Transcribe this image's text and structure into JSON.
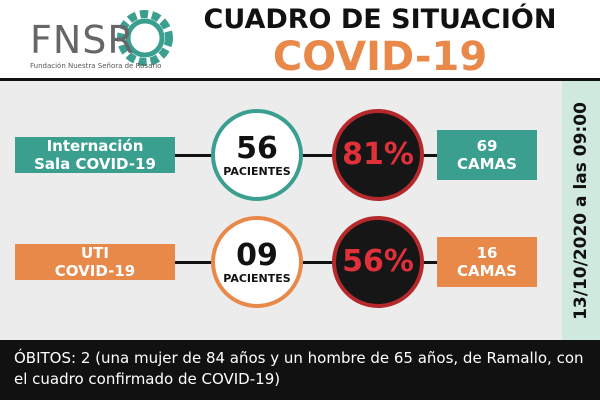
{
  "header": {
    "logo": "FNSR",
    "logo_subtitle": "Fundación Nuestra Señora de Rosario",
    "title": "CUADRO DE SITUACIÓN",
    "subtitle": "COVID-19"
  },
  "rows": [
    {
      "label_lines": [
        "Internación",
        "Sala COVID-19"
      ],
      "patients": "56",
      "patients_label": "PACIENTES",
      "occupancy": "81%",
      "beds_lines": [
        "69",
        "CAMAS"
      ]
    },
    {
      "label_lines": [
        "UTI",
        "COVID-19"
      ],
      "patients": "09",
      "patients_label": "PACIENTES",
      "occupancy": "56%",
      "beds_lines": [
        "16",
        "CAMAS"
      ]
    }
  ],
  "date": "13/10/2020 a las 09:00",
  "footer": "ÓBITOS: 2 (una mujer de 84 años y un hombre de 65 años, de Ramallo, con el cuadro confirmado de COVID-19)"
}
